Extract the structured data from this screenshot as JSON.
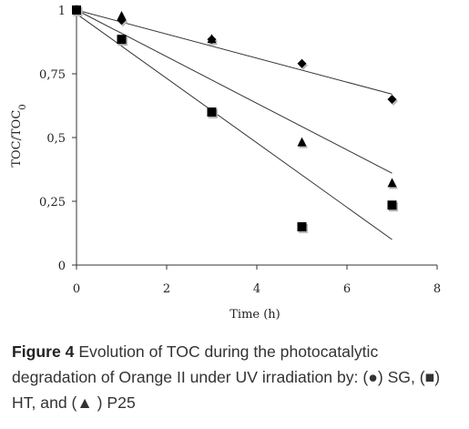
{
  "chart_data": {
    "type": "scatter",
    "xlabel": "Time (h)",
    "ylabel": "TOC/TOC",
    "ylabel_subscript": "0",
    "xlim": [
      0,
      8
    ],
    "ylim": [
      0,
      1
    ],
    "xticks": [
      "0",
      "2",
      "4",
      "6",
      "8"
    ],
    "yticks": [
      "0",
      "0,25",
      "0,5",
      "0,75",
      "1"
    ],
    "ytick_values": [
      0,
      0.25,
      0.5,
      0.75,
      1
    ],
    "grid": false,
    "series": [
      {
        "marker": "diamond",
        "points": [
          [
            0,
            1.0
          ],
          [
            1,
            0.96
          ],
          [
            3,
            0.885
          ],
          [
            5,
            0.79
          ],
          [
            7,
            0.65
          ]
        ],
        "fit": [
          [
            0,
            1.0
          ],
          [
            7,
            0.67
          ]
        ]
      },
      {
        "marker": "square",
        "points": [
          [
            0,
            1.0
          ],
          [
            1,
            0.885
          ],
          [
            3,
            0.6
          ],
          [
            5,
            0.15
          ],
          [
            7,
            0.235
          ]
        ],
        "fit": [
          [
            0,
            0.985
          ],
          [
            7,
            0.1
          ]
        ]
      },
      {
        "marker": "triangle",
        "points": [
          [
            0,
            1.0
          ],
          [
            1,
            0.975
          ],
          [
            3,
            0.885
          ],
          [
            5,
            0.48
          ],
          [
            7,
            0.32
          ]
        ],
        "fit": [
          [
            0,
            1.0
          ],
          [
            7,
            0.36
          ]
        ]
      }
    ]
  },
  "caption": {
    "label": "Figure 4",
    "text": " Evolution of TOC during the photocatalytic degradation of Orange II under UV irradiation by: (●) SG, (■) HT, and (▲ ) P25"
  }
}
